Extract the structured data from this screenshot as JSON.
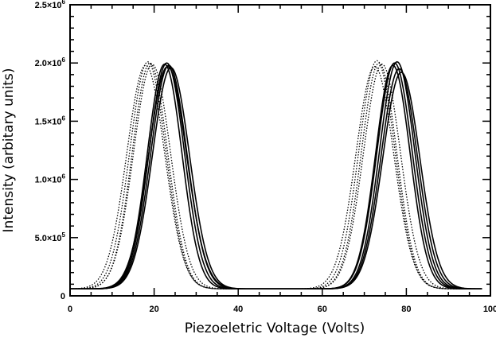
{
  "chart_data": {
    "type": "line",
    "title": "",
    "xlabel": "Piezoeletric Voltage (Volts)",
    "ylabel": "Intensity (arbitary units)",
    "xlim": [
      0,
      100
    ],
    "ylim": [
      0,
      2500000
    ],
    "x_ticks": [
      0,
      20,
      40,
      60,
      80,
      100
    ],
    "x_tick_labels": [
      "0",
      "20",
      "40",
      "60",
      "80",
      "100"
    ],
    "y_ticks": [
      0,
      500000,
      1000000,
      1500000,
      2000000,
      2500000
    ],
    "y_tick_labels": [
      {
        "mantissa": "0",
        "exponent": ""
      },
      {
        "mantissa": "5.0×10",
        "exponent": "5"
      },
      {
        "mantissa": "1.0×10",
        "exponent": "6"
      },
      {
        "mantissa": "1.5×10",
        "exponent": "6"
      },
      {
        "mantissa": "2.0×10",
        "exponent": "6"
      },
      {
        "mantissa": "2.5×10",
        "exponent": "6"
      }
    ],
    "grid": false,
    "legend": "none",
    "baseline": 60000,
    "series": [
      {
        "style": "solid",
        "x_range": [
          0,
          98
        ],
        "peaks": [
          {
            "center": 23.0,
            "height": 2000000,
            "width": 4.2
          },
          {
            "center": 77.2,
            "height": 2000000,
            "width": 4.2
          }
        ]
      },
      {
        "style": "solid",
        "x_range": [
          0,
          98
        ],
        "peaks": [
          {
            "center": 23.5,
            "height": 1980000,
            "width": 4.3
          },
          {
            "center": 77.8,
            "height": 2010000,
            "width": 4.2
          }
        ]
      },
      {
        "style": "solid",
        "x_range": [
          0,
          98
        ],
        "peaks": [
          {
            "center": 24.0,
            "height": 1960000,
            "width": 4.4
          },
          {
            "center": 78.3,
            "height": 1950000,
            "width": 4.3
          }
        ]
      },
      {
        "style": "solid",
        "x_range": [
          0,
          98
        ],
        "peaks": [
          {
            "center": 22.5,
            "height": 1990000,
            "width": 4.1
          },
          {
            "center": 78.8,
            "height": 1920000,
            "width": 4.4
          }
        ]
      },
      {
        "style": "solid",
        "x_range": [
          0,
          98
        ],
        "peaks": [
          {
            "center": 23.2,
            "height": 1970000,
            "width": 4.5
          },
          {
            "center": 76.8,
            "height": 1980000,
            "width": 4.1
          }
        ]
      },
      {
        "style": "dotted",
        "x_range": [
          0,
          98
        ],
        "peaks": [
          {
            "center": 18.5,
            "height": 2010000,
            "width": 4.3
          },
          {
            "center": 73.0,
            "height": 2020000,
            "width": 4.3
          }
        ]
      },
      {
        "style": "dotted",
        "x_range": [
          0,
          98
        ],
        "peaks": [
          {
            "center": 19.0,
            "height": 2000000,
            "width": 4.2
          },
          {
            "center": 73.5,
            "height": 2000000,
            "width": 4.2
          }
        ]
      },
      {
        "style": "dotted",
        "x_range": [
          0,
          98
        ],
        "peaks": [
          {
            "center": 19.5,
            "height": 1990000,
            "width": 4.4
          },
          {
            "center": 74.2,
            "height": 1990000,
            "width": 4.4
          }
        ]
      },
      {
        "style": "dotted",
        "x_range": [
          0,
          98
        ],
        "peaks": [
          {
            "center": 18.0,
            "height": 1980000,
            "width": 4.5
          },
          {
            "center": 72.5,
            "height": 1970000,
            "width": 4.5
          }
        ]
      }
    ]
  }
}
